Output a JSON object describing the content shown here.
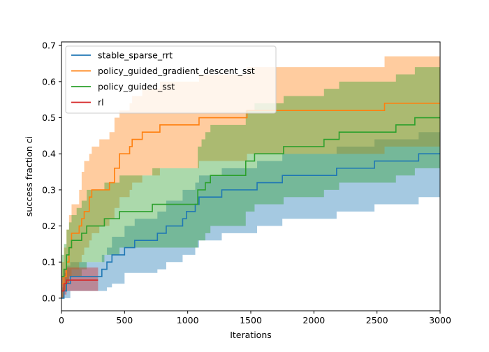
{
  "chart_data": {
    "type": "line",
    "subtype": "step with confidence bands",
    "title": "",
    "xlabel": "Iterations",
    "ylabel": "success fraction ci",
    "xlim": [
      0,
      3000
    ],
    "ylim": [
      -0.035,
      0.71
    ],
    "xticks": [
      0,
      500,
      1000,
      1500,
      2000,
      2500,
      3000
    ],
    "yticks": [
      0.0,
      0.1,
      0.2,
      0.3,
      0.4,
      0.5,
      0.6,
      0.7
    ],
    "grid": false,
    "legend_position": "top-left",
    "series": [
      {
        "name": "stable_sparse_rrt",
        "color": "#1f77b4",
        "x": [
          0,
          20,
          40,
          70,
          320,
          360,
          400,
          500,
          580,
          760,
          830,
          850,
          960,
          990,
          1060,
          1090,
          1150,
          1270,
          1450,
          1500,
          1550,
          1750,
          2080,
          2180,
          2330,
          2480,
          2780,
          2830,
          2930,
          3000
        ],
        "y": [
          0.0,
          0.02,
          0.04,
          0.06,
          0.08,
          0.1,
          0.12,
          0.14,
          0.16,
          0.18,
          0.2,
          0.2,
          0.22,
          0.24,
          0.26,
          0.28,
          0.28,
          0.3,
          0.3,
          0.3,
          0.32,
          0.34,
          0.34,
          0.36,
          0.36,
          0.38,
          0.38,
          0.4,
          0.4,
          0.4
        ],
        "lower": [
          0.0,
          0.0,
          0.0,
          0.02,
          0.02,
          0.03,
          0.04,
          0.07,
          0.07,
          0.08,
          0.1,
          0.1,
          0.12,
          0.12,
          0.14,
          0.16,
          0.16,
          0.18,
          0.18,
          0.18,
          0.2,
          0.22,
          0.22,
          0.24,
          0.24,
          0.26,
          0.26,
          0.28,
          0.28,
          0.28
        ],
        "upper": [
          0.03,
          0.07,
          0.09,
          0.1,
          0.12,
          0.14,
          0.17,
          0.2,
          0.22,
          0.24,
          0.27,
          0.27,
          0.3,
          0.3,
          0.32,
          0.34,
          0.34,
          0.36,
          0.36,
          0.36,
          0.38,
          0.4,
          0.4,
          0.42,
          0.42,
          0.44,
          0.44,
          0.46,
          0.46,
          0.46
        ]
      },
      {
        "name": "policy_guided_gradient_descent_sst",
        "color": "#ff7f0e",
        "x": [
          0,
          20,
          40,
          60,
          80,
          140,
          160,
          180,
          220,
          240,
          300,
          380,
          420,
          460,
          500,
          540,
          560,
          620,
          640,
          760,
          780,
          1070,
          1090,
          1450,
          1470,
          2540,
          2560,
          3000
        ],
        "y": [
          0.04,
          0.06,
          0.1,
          0.14,
          0.18,
          0.2,
          0.22,
          0.24,
          0.28,
          0.3,
          0.3,
          0.32,
          0.36,
          0.4,
          0.4,
          0.42,
          0.44,
          0.44,
          0.46,
          0.46,
          0.48,
          0.48,
          0.5,
          0.5,
          0.52,
          0.52,
          0.54,
          0.54
        ],
        "lower": [
          0.0,
          0.02,
          0.04,
          0.06,
          0.08,
          0.1,
          0.12,
          0.14,
          0.16,
          0.18,
          0.2,
          0.22,
          0.25,
          0.28,
          0.28,
          0.3,
          0.32,
          0.32,
          0.34,
          0.34,
          0.36,
          0.36,
          0.38,
          0.38,
          0.4,
          0.4,
          0.42,
          0.42
        ],
        "upper": [
          0.1,
          0.14,
          0.19,
          0.23,
          0.26,
          0.3,
          0.35,
          0.38,
          0.4,
          0.42,
          0.44,
          0.46,
          0.5,
          0.52,
          0.52,
          0.54,
          0.56,
          0.56,
          0.58,
          0.58,
          0.6,
          0.6,
          0.62,
          0.62,
          0.64,
          0.64,
          0.67,
          0.67
        ]
      },
      {
        "name": "policy_guided_sst",
        "color": "#2ca02c",
        "x": [
          0,
          20,
          40,
          60,
          80,
          120,
          160,
          200,
          300,
          340,
          400,
          460,
          540,
          600,
          720,
          880,
          1080,
          1110,
          1140,
          1180,
          1420,
          1460,
          1530,
          1760,
          2080,
          2200,
          2400,
          2650,
          2800,
          3000
        ],
        "y": [
          0.06,
          0.08,
          0.12,
          0.14,
          0.16,
          0.16,
          0.18,
          0.2,
          0.2,
          0.22,
          0.22,
          0.24,
          0.24,
          0.24,
          0.26,
          0.26,
          0.3,
          0.3,
          0.32,
          0.34,
          0.34,
          0.38,
          0.4,
          0.42,
          0.44,
          0.46,
          0.46,
          0.48,
          0.5,
          0.5
        ],
        "lower": [
          0.0,
          0.02,
          0.04,
          0.06,
          0.06,
          0.06,
          0.08,
          0.1,
          0.1,
          0.12,
          0.12,
          0.14,
          0.14,
          0.14,
          0.14,
          0.14,
          0.16,
          0.16,
          0.18,
          0.2,
          0.2,
          0.24,
          0.26,
          0.28,
          0.3,
          0.32,
          0.32,
          0.34,
          0.36,
          0.36
        ],
        "upper": [
          0.12,
          0.15,
          0.19,
          0.21,
          0.23,
          0.25,
          0.27,
          0.3,
          0.3,
          0.32,
          0.32,
          0.34,
          0.34,
          0.34,
          0.36,
          0.36,
          0.42,
          0.44,
          0.46,
          0.48,
          0.48,
          0.52,
          0.54,
          0.56,
          0.58,
          0.6,
          0.6,
          0.62,
          0.64,
          0.64
        ]
      },
      {
        "name": "rl",
        "color": "#d62728",
        "x": [
          0,
          20,
          40,
          60,
          290
        ],
        "y": [
          0.02,
          0.04,
          0.05,
          0.05,
          0.05
        ],
        "lower": [
          0.0,
          0.01,
          0.02,
          0.02,
          0.02
        ],
        "upper": [
          0.06,
          0.08,
          0.085,
          0.085,
          0.085
        ]
      }
    ]
  }
}
